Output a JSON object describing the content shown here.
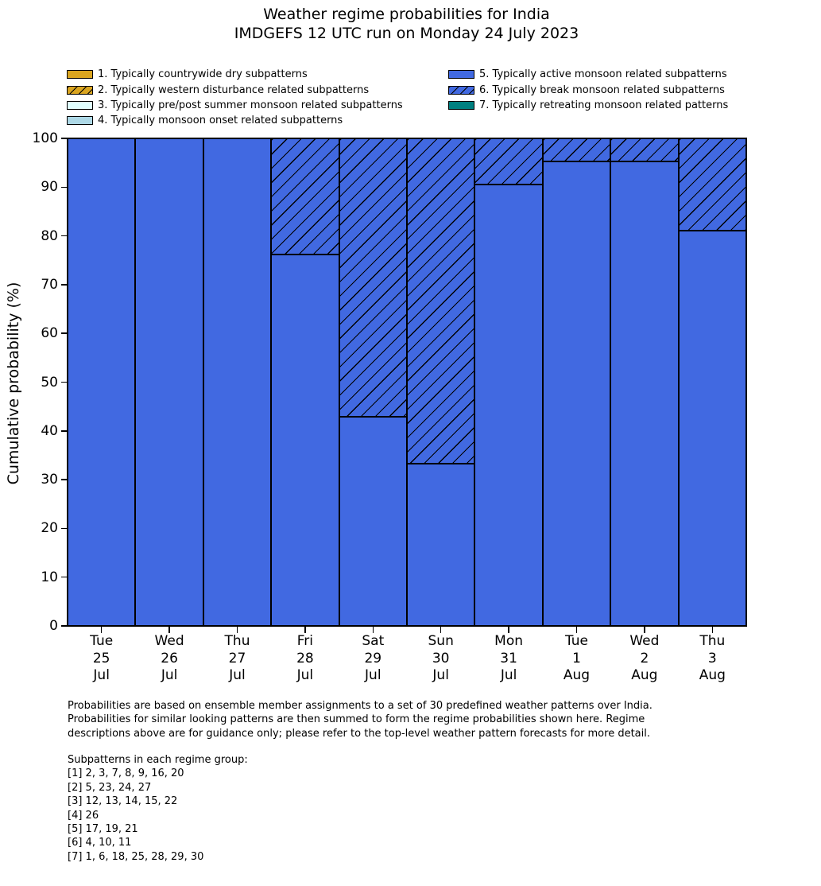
{
  "title": {
    "line1": "Weather regime probabilities for India",
    "line2": "IMDGEFS 12 UTC run on Monday 24 July 2023"
  },
  "legend": {
    "items": [
      {
        "label": "1. Typically countrywide dry subpatterns",
        "fill": "#DAA520",
        "hatch": false,
        "column": "left"
      },
      {
        "label": "2. Typically western disturbance related subpatterns",
        "fill": "#DAA520",
        "hatch": true,
        "column": "left"
      },
      {
        "label": "3. Typically pre/post summer monsoon related subpatterns",
        "fill": "#E0FFFF",
        "hatch": false,
        "column": "left"
      },
      {
        "label": "4. Typically monsoon onset related subpatterns",
        "fill": "#ADD8E6",
        "hatch": false,
        "column": "left"
      },
      {
        "label": "5. Typically active monsoon related subpatterns",
        "fill": "#4169E1",
        "hatch": false,
        "column": "right"
      },
      {
        "label": "6. Typically break monsoon related subpatterns",
        "fill": "#4169E1",
        "hatch": true,
        "column": "right"
      },
      {
        "label": "7. Typically retreating monsoon related patterns",
        "fill": "#008080",
        "hatch": false,
        "column": "right"
      }
    ]
  },
  "chart_data": {
    "type": "bar",
    "stacked": true,
    "title": "Weather regime probabilities for India / IMDGEFS 12 UTC run on Monday 24 July 2023",
    "ylabel": "Cumulative probability (%)",
    "ylim": [
      0,
      100
    ],
    "yticks": [
      0,
      10,
      20,
      30,
      40,
      50,
      60,
      70,
      80,
      90,
      100
    ],
    "grid": false,
    "legend_position": "top",
    "categories": [
      {
        "day": "Tue",
        "date": "25",
        "month": "Jul"
      },
      {
        "day": "Wed",
        "date": "26",
        "month": "Jul"
      },
      {
        "day": "Thu",
        "date": "27",
        "month": "Jul"
      },
      {
        "day": "Fri",
        "date": "28",
        "month": "Jul"
      },
      {
        "day": "Sat",
        "date": "29",
        "month": "Jul"
      },
      {
        "day": "Sun",
        "date": "30",
        "month": "Jul"
      },
      {
        "day": "Mon",
        "date": "31",
        "month": "Jul"
      },
      {
        "day": "Tue",
        "date": "1",
        "month": "Aug"
      },
      {
        "day": "Wed",
        "date": "2",
        "month": "Aug"
      },
      {
        "day": "Thu",
        "date": "3",
        "month": "Aug"
      }
    ],
    "series": [
      {
        "name": "5. Typically active monsoon related subpatterns",
        "color": "#4169E1",
        "hatch": false,
        "values": [
          100,
          100,
          100,
          76.2,
          42.9,
          33.3,
          90.5,
          95.2,
          95.2,
          81.0
        ]
      },
      {
        "name": "6. Typically break monsoon related subpatterns",
        "color": "#4169E1",
        "hatch": true,
        "values": [
          0,
          0,
          0,
          23.8,
          57.1,
          66.7,
          9.5,
          4.8,
          4.8,
          19.0
        ]
      }
    ]
  },
  "footer": {
    "lines": [
      "Probabilities are based on ensemble member assignments to a set of 30 predefined weather patterns over India.",
      "Probabilities for similar looking patterns are then summed to form the regime probabilities shown here. Regime",
      "descriptions above are for guidance only; please refer to the top-level weather pattern forecasts for more detail."
    ]
  },
  "subpatterns": {
    "header": "Subpatterns in each regime group:",
    "groups": [
      "[1] 2, 3, 7, 8, 9, 16, 20",
      "[2] 5, 23, 24, 27",
      "[3] 12, 13, 14, 15, 22",
      "[4] 26",
      "[5] 17, 19, 21",
      "[6] 4, 10, 11",
      "[7] 1, 6, 18, 25, 28, 29, 30"
    ]
  },
  "colors": {
    "regime_dry": "#DAA520",
    "regime_prepost_monsoon": "#E0FFFF",
    "regime_monsoon_onset": "#ADD8E6",
    "regime_active_monsoon": "#4169E1",
    "regime_retreating_monsoon": "#008080",
    "hatch_line": "#000000",
    "axis": "#000000",
    "background": "#FFFFFF"
  }
}
